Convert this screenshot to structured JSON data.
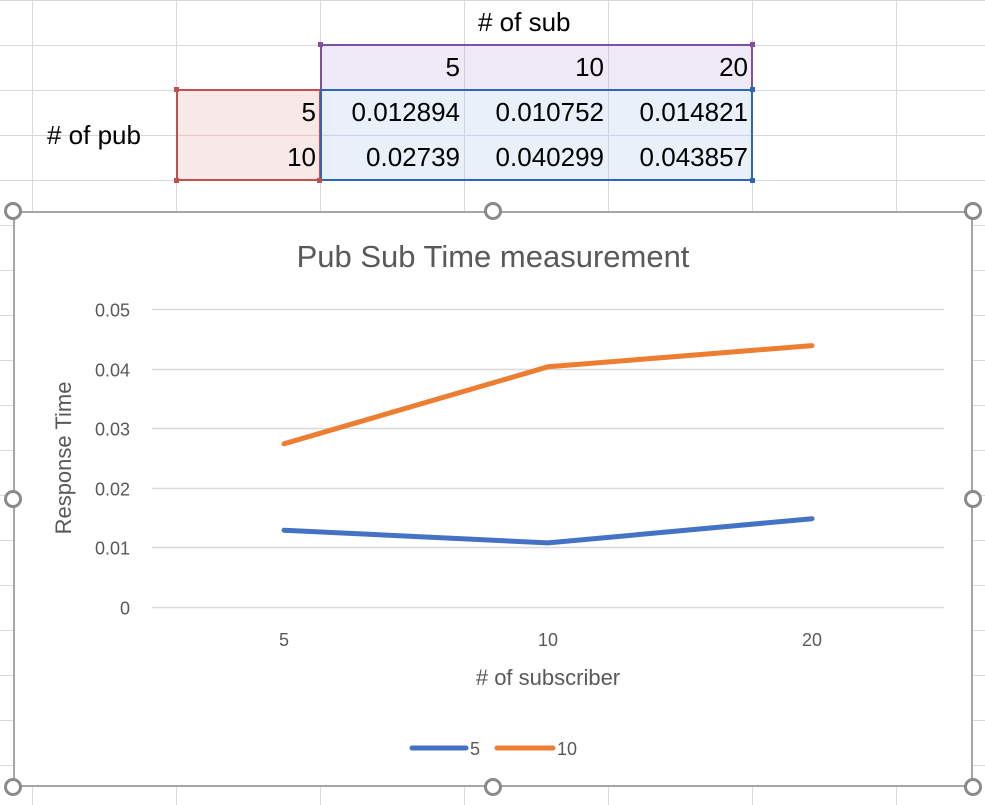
{
  "sheet": {
    "sub_header": "# of sub",
    "pub_header": "# of pub",
    "sub_values": [
      "5",
      "10",
      "20"
    ],
    "rows": [
      {
        "pub": "5",
        "cells": [
          "0.012894",
          "0.010752",
          "0.014821"
        ]
      },
      {
        "pub": "10",
        "cells": [
          "0.02739",
          "0.040299",
          "0.043857"
        ]
      }
    ]
  },
  "colors": {
    "series_5": "#4472c4",
    "series_10": "#ed7d31",
    "sub_range_border": "#7f4fa0",
    "sub_range_fill": "#efeaf7",
    "pub_range_border": "#c0504d",
    "pub_range_fill": "#f9e8e8",
    "data_range_border": "#2f66b3",
    "data_range_fill": "#e9f0f9"
  },
  "chart_data": {
    "type": "line",
    "title": "Pub Sub Time measurement",
    "xlabel": "# of subscriber",
    "ylabel": "Response Time",
    "categories": [
      "5",
      "10",
      "20"
    ],
    "series": [
      {
        "name": "5",
        "values": [
          0.012894,
          0.010752,
          0.014821
        ]
      },
      {
        "name": "10",
        "values": [
          0.02739,
          0.040299,
          0.043857
        ]
      }
    ],
    "ylim": [
      0,
      0.05
    ],
    "yticks": [
      0,
      0.01,
      0.02,
      0.03,
      0.04,
      0.05
    ],
    "ytick_labels": [
      "0",
      "0.01",
      "0.02",
      "0.03",
      "0.04",
      "0.05"
    ],
    "grid": true,
    "legend": "bottom"
  }
}
